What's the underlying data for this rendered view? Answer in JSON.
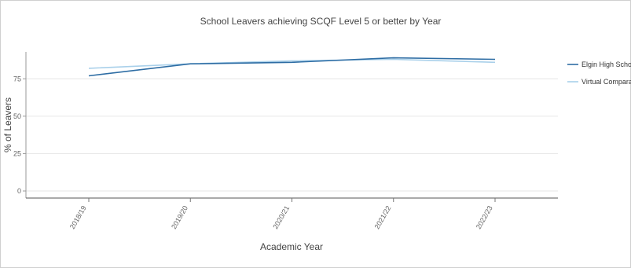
{
  "chart_data": {
    "type": "line",
    "title": "School Leavers achieving SCQF Level 5 or better by Year",
    "xlabel": "Academic Year",
    "ylabel": "% of Leavers",
    "categories": [
      "2018/19",
      "2019/20",
      "2020/21",
      "2021/22",
      "2022/23"
    ],
    "ylim": [
      0,
      93
    ],
    "yticks": [
      0,
      25,
      50,
      75
    ],
    "grid": true,
    "legend_position": "right",
    "series": [
      {
        "name": "Elgin High School",
        "values": [
          77,
          85,
          86,
          89,
          88
        ],
        "color": "#2e6da4"
      },
      {
        "name": "Virtual Comparator",
        "values": [
          82,
          85,
          87,
          88,
          86
        ],
        "color": "#a9d0ea"
      }
    ]
  }
}
